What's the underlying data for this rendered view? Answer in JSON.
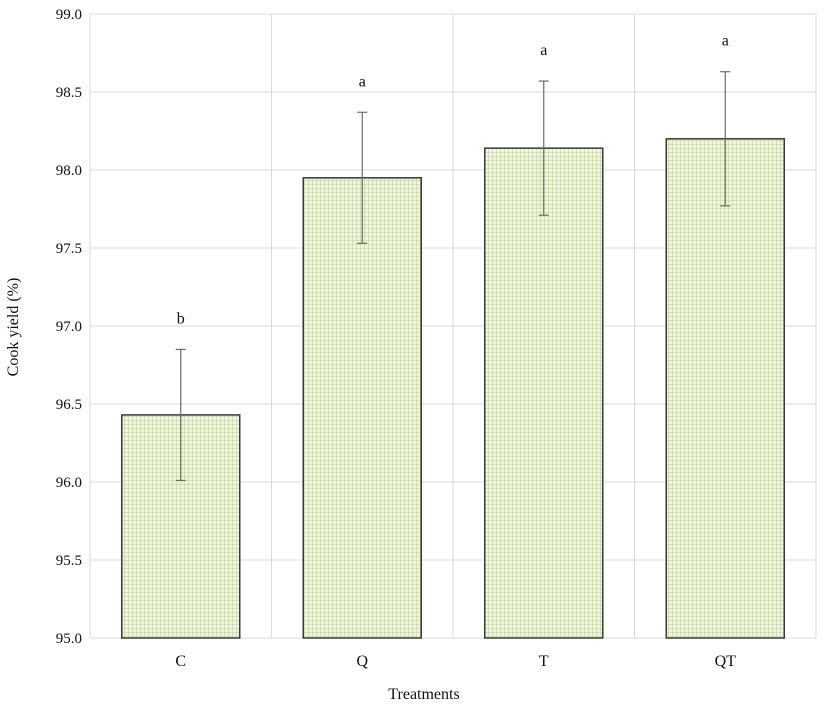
{
  "chart_data": {
    "type": "bar",
    "title": "",
    "xlabel": "Treatments",
    "ylabel": "Cook yield (%)",
    "categories": [
      "C",
      "Q",
      "T",
      "QT"
    ],
    "values": [
      96.43,
      97.95,
      98.14,
      98.2
    ],
    "errors": [
      0.42,
      0.42,
      0.43,
      0.43
    ],
    "significance": [
      "b",
      "a",
      "a",
      "a"
    ],
    "ylim": [
      95.0,
      99.0
    ],
    "yticks": [
      "95.0",
      "95.5",
      "96.0",
      "96.5",
      "97.0",
      "97.5",
      "98.0",
      "98.5",
      "99.0"
    ],
    "grid": true,
    "legend": "none",
    "colors": {
      "bar_fill": "#eef5dc",
      "bar_pattern": "#a9c97a",
      "bar_edge": "#3a3a3a",
      "grid": "#d9d9d9",
      "error_bar": "#6b6b6b"
    }
  }
}
